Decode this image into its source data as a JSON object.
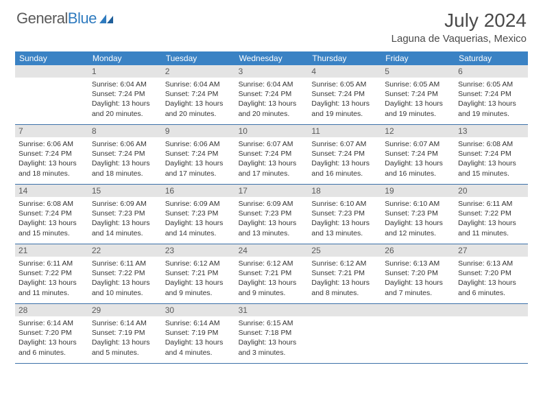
{
  "brand": {
    "part1": "General",
    "part2": "Blue"
  },
  "title": "July 2024",
  "location": "Laguna de Vaquerias, Mexico",
  "colors": {
    "header_bg": "#3a82c4",
    "header_fg": "#ffffff",
    "daynum_bg": "#e4e4e4",
    "rule": "#3a6fa8",
    "brand_gray": "#5a5a5a",
    "brand_blue": "#2f7bbf"
  },
  "typography": {
    "title_fontsize": 28,
    "location_fontsize": 15,
    "dow_fontsize": 12,
    "daynum_fontsize": 12,
    "body_fontsize": 10.5
  },
  "dow": [
    "Sunday",
    "Monday",
    "Tuesday",
    "Wednesday",
    "Thursday",
    "Friday",
    "Saturday"
  ],
  "weeks": [
    [
      {
        "n": "",
        "sr": "",
        "ss": "",
        "dl": ""
      },
      {
        "n": "1",
        "sr": "6:04 AM",
        "ss": "7:24 PM",
        "dl": "13 hours and 20 minutes."
      },
      {
        "n": "2",
        "sr": "6:04 AM",
        "ss": "7:24 PM",
        "dl": "13 hours and 20 minutes."
      },
      {
        "n": "3",
        "sr": "6:04 AM",
        "ss": "7:24 PM",
        "dl": "13 hours and 20 minutes."
      },
      {
        "n": "4",
        "sr": "6:05 AM",
        "ss": "7:24 PM",
        "dl": "13 hours and 19 minutes."
      },
      {
        "n": "5",
        "sr": "6:05 AM",
        "ss": "7:24 PM",
        "dl": "13 hours and 19 minutes."
      },
      {
        "n": "6",
        "sr": "6:05 AM",
        "ss": "7:24 PM",
        "dl": "13 hours and 19 minutes."
      }
    ],
    [
      {
        "n": "7",
        "sr": "6:06 AM",
        "ss": "7:24 PM",
        "dl": "13 hours and 18 minutes."
      },
      {
        "n": "8",
        "sr": "6:06 AM",
        "ss": "7:24 PM",
        "dl": "13 hours and 18 minutes."
      },
      {
        "n": "9",
        "sr": "6:06 AM",
        "ss": "7:24 PM",
        "dl": "13 hours and 17 minutes."
      },
      {
        "n": "10",
        "sr": "6:07 AM",
        "ss": "7:24 PM",
        "dl": "13 hours and 17 minutes."
      },
      {
        "n": "11",
        "sr": "6:07 AM",
        "ss": "7:24 PM",
        "dl": "13 hours and 16 minutes."
      },
      {
        "n": "12",
        "sr": "6:07 AM",
        "ss": "7:24 PM",
        "dl": "13 hours and 16 minutes."
      },
      {
        "n": "13",
        "sr": "6:08 AM",
        "ss": "7:24 PM",
        "dl": "13 hours and 15 minutes."
      }
    ],
    [
      {
        "n": "14",
        "sr": "6:08 AM",
        "ss": "7:24 PM",
        "dl": "13 hours and 15 minutes."
      },
      {
        "n": "15",
        "sr": "6:09 AM",
        "ss": "7:23 PM",
        "dl": "13 hours and 14 minutes."
      },
      {
        "n": "16",
        "sr": "6:09 AM",
        "ss": "7:23 PM",
        "dl": "13 hours and 14 minutes."
      },
      {
        "n": "17",
        "sr": "6:09 AM",
        "ss": "7:23 PM",
        "dl": "13 hours and 13 minutes."
      },
      {
        "n": "18",
        "sr": "6:10 AM",
        "ss": "7:23 PM",
        "dl": "13 hours and 13 minutes."
      },
      {
        "n": "19",
        "sr": "6:10 AM",
        "ss": "7:23 PM",
        "dl": "13 hours and 12 minutes."
      },
      {
        "n": "20",
        "sr": "6:11 AM",
        "ss": "7:22 PM",
        "dl": "13 hours and 11 minutes."
      }
    ],
    [
      {
        "n": "21",
        "sr": "6:11 AM",
        "ss": "7:22 PM",
        "dl": "13 hours and 11 minutes."
      },
      {
        "n": "22",
        "sr": "6:11 AM",
        "ss": "7:22 PM",
        "dl": "13 hours and 10 minutes."
      },
      {
        "n": "23",
        "sr": "6:12 AM",
        "ss": "7:21 PM",
        "dl": "13 hours and 9 minutes."
      },
      {
        "n": "24",
        "sr": "6:12 AM",
        "ss": "7:21 PM",
        "dl": "13 hours and 9 minutes."
      },
      {
        "n": "25",
        "sr": "6:12 AM",
        "ss": "7:21 PM",
        "dl": "13 hours and 8 minutes."
      },
      {
        "n": "26",
        "sr": "6:13 AM",
        "ss": "7:20 PM",
        "dl": "13 hours and 7 minutes."
      },
      {
        "n": "27",
        "sr": "6:13 AM",
        "ss": "7:20 PM",
        "dl": "13 hours and 6 minutes."
      }
    ],
    [
      {
        "n": "28",
        "sr": "6:14 AM",
        "ss": "7:20 PM",
        "dl": "13 hours and 6 minutes."
      },
      {
        "n": "29",
        "sr": "6:14 AM",
        "ss": "7:19 PM",
        "dl": "13 hours and 5 minutes."
      },
      {
        "n": "30",
        "sr": "6:14 AM",
        "ss": "7:19 PM",
        "dl": "13 hours and 4 minutes."
      },
      {
        "n": "31",
        "sr": "6:15 AM",
        "ss": "7:18 PM",
        "dl": "13 hours and 3 minutes."
      },
      {
        "n": "",
        "sr": "",
        "ss": "",
        "dl": ""
      },
      {
        "n": "",
        "sr": "",
        "ss": "",
        "dl": ""
      },
      {
        "n": "",
        "sr": "",
        "ss": "",
        "dl": ""
      }
    ]
  ],
  "labels": {
    "sunrise": "Sunrise: ",
    "sunset": "Sunset: ",
    "daylight": "Daylight: "
  }
}
